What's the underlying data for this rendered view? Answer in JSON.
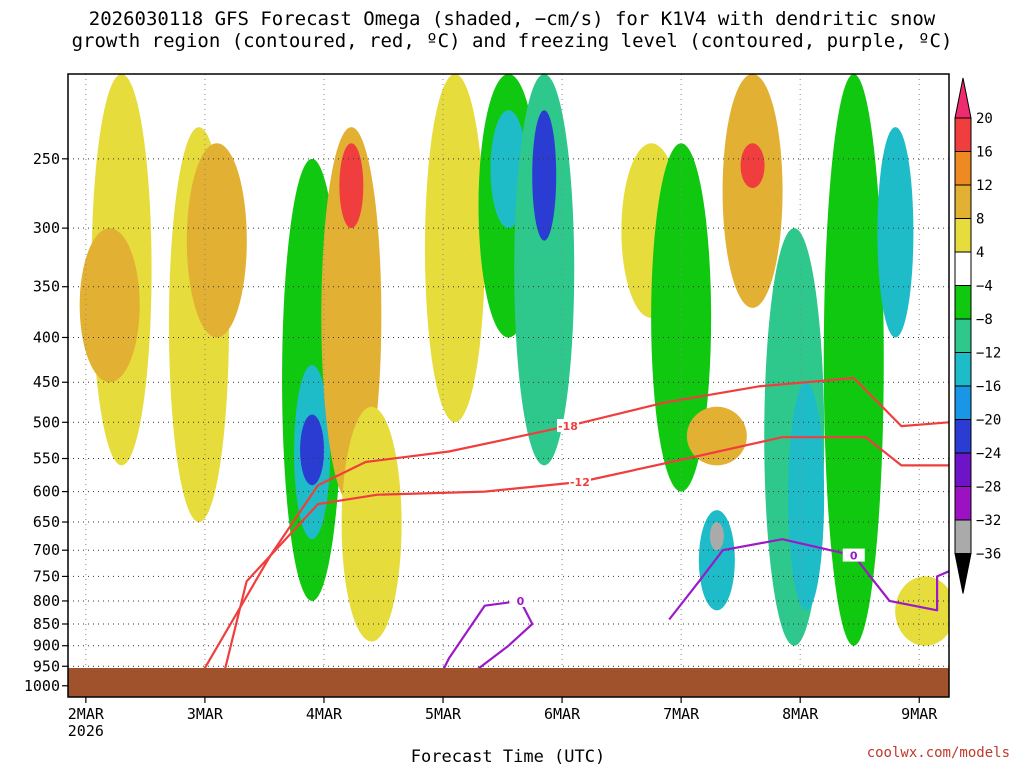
{
  "chart_data": {
    "type": "heatmap",
    "title_line1": "2026030118 GFS Forecast Omega (shaded, −cm/s) for K1V4 with dendritic snow",
    "title_line2": "growth region (contoured, red, ºC) and freezing level (contoured, purple, ºC)",
    "xlabel": "Forecast Time (UTC)",
    "credit": "coolwx.com/models",
    "x_range_days": [
      0.0,
      7.4
    ],
    "x_ticks": [
      {
        "day": 0.15,
        "label": "2MAR",
        "sub": "2026"
      },
      {
        "day": 1.15,
        "label": "3MAR",
        "sub": ""
      },
      {
        "day": 2.15,
        "label": "4MAR",
        "sub": ""
      },
      {
        "day": 3.15,
        "label": "5MAR",
        "sub": ""
      },
      {
        "day": 4.15,
        "label": "6MAR",
        "sub": ""
      },
      {
        "day": 5.15,
        "label": "7MAR",
        "sub": ""
      },
      {
        "day": 6.15,
        "label": "8MAR",
        "sub": ""
      },
      {
        "day": 7.15,
        "label": "9MAR",
        "sub": ""
      }
    ],
    "y_ticks": [
      250,
      300,
      350,
      400,
      450,
      500,
      550,
      600,
      650,
      700,
      750,
      800,
      850,
      900,
      950,
      1000
    ],
    "y_range_hpa": [
      200,
      1030
    ],
    "colorbar": {
      "labels": [
        "20",
        "16",
        "12",
        "8",
        "4",
        "−4",
        "−8",
        "−12",
        "−16",
        "−20",
        "−24",
        "−28",
        "−32",
        "−36"
      ],
      "colors": [
        "#f02a6e",
        "#f03e3e",
        "#ee8a22",
        "#e2b032",
        "#e6dc3c",
        "#ffffff",
        "#10c810",
        "#2ec88c",
        "#1ebcc8",
        "#1a96e6",
        "#2a3cd2",
        "#6e14c8",
        "#9c12c2",
        "#aaaaaa",
        "#000000"
      ]
    },
    "omega_blobs": [
      {
        "day": 0.45,
        "p0": 200,
        "p1": 560,
        "val": 5
      },
      {
        "day": 1.1,
        "p0": 230,
        "p1": 650,
        "val": 5
      },
      {
        "day": 0.35,
        "p0": 300,
        "p1": 450,
        "val": 9
      },
      {
        "day": 1.25,
        "p0": 240,
        "p1": 400,
        "val": 9
      },
      {
        "day": 2.05,
        "p0": 250,
        "p1": 800,
        "val": -7
      },
      {
        "day": 2.05,
        "p0": 430,
        "p1": 680,
        "val": -13
      },
      {
        "day": 2.05,
        "p0": 490,
        "p1": 590,
        "val": -22
      },
      {
        "day": 2.38,
        "p0": 230,
        "p1": 620,
        "val": 9
      },
      {
        "day": 2.38,
        "p0": 240,
        "p1": 300,
        "val": 17
      },
      {
        "day": 2.55,
        "p0": 480,
        "p1": 890,
        "val": 5
      },
      {
        "day": 3.25,
        "p0": 200,
        "p1": 500,
        "val": 5
      },
      {
        "day": 3.7,
        "p0": 200,
        "p1": 400,
        "val": -7
      },
      {
        "day": 3.7,
        "p0": 220,
        "p1": 300,
        "val": -15
      },
      {
        "day": 4.0,
        "p0": 200,
        "p1": 560,
        "val": -8
      },
      {
        "day": 4.0,
        "p0": 220,
        "p1": 310,
        "val": -21
      },
      {
        "day": 4.9,
        "p0": 240,
        "p1": 380,
        "val": 5
      },
      {
        "day": 5.15,
        "p0": 240,
        "p1": 600,
        "val": -7
      },
      {
        "day": 5.45,
        "p0": 480,
        "p1": 560,
        "val": 9
      },
      {
        "day": 5.45,
        "p0": 630,
        "p1": 820,
        "val": -14
      },
      {
        "day": 5.45,
        "p0": 650,
        "p1": 700,
        "val": -33
      },
      {
        "day": 5.75,
        "p0": 200,
        "p1": 370,
        "val": 9
      },
      {
        "day": 5.75,
        "p0": 240,
        "p1": 270,
        "val": 17
      },
      {
        "day": 6.1,
        "p0": 300,
        "p1": 900,
        "val": -8
      },
      {
        "day": 6.2,
        "p0": 450,
        "p1": 820,
        "val": -13
      },
      {
        "day": 6.6,
        "p0": 200,
        "p1": 900,
        "val": -7
      },
      {
        "day": 6.95,
        "p0": 230,
        "p1": 400,
        "val": -13
      },
      {
        "day": 7.2,
        "p0": 750,
        "p1": 900,
        "val": 5
      }
    ],
    "red_contours": [
      {
        "label": "-18",
        "points": [
          [
            1.1,
            980
          ],
          [
            1.7,
            710
          ],
          [
            2.1,
            590
          ],
          [
            2.5,
            555
          ],
          [
            3.2,
            540
          ],
          [
            4.2,
            505
          ],
          [
            5.0,
            475
          ],
          [
            5.8,
            455
          ],
          [
            6.6,
            445
          ],
          [
            7.0,
            505
          ],
          [
            7.4,
            500
          ]
        ]
      },
      {
        "label": "-12",
        "points": [
          [
            1.3,
            980
          ],
          [
            1.5,
            760
          ],
          [
            2.1,
            620
          ],
          [
            2.6,
            605
          ],
          [
            3.5,
            600
          ],
          [
            4.3,
            585
          ],
          [
            5.2,
            550
          ],
          [
            6.0,
            520
          ],
          [
            6.7,
            520
          ],
          [
            7.0,
            560
          ],
          [
            7.4,
            560
          ]
        ]
      }
    ],
    "purple_contours": [
      {
        "label": "0",
        "points": [
          [
            3.1,
            990
          ],
          [
            3.2,
            930
          ],
          [
            3.5,
            810
          ],
          [
            3.8,
            800
          ],
          [
            3.9,
            850
          ],
          [
            3.7,
            900
          ],
          [
            3.3,
            990
          ]
        ]
      },
      {
        "label": "0",
        "points": [
          [
            5.05,
            840
          ],
          [
            5.3,
            760
          ],
          [
            5.5,
            700
          ],
          [
            6.0,
            680
          ],
          [
            6.6,
            710
          ],
          [
            6.9,
            800
          ],
          [
            7.3,
            820
          ],
          [
            7.3,
            750
          ],
          [
            7.4,
            740
          ]
        ]
      }
    ]
  }
}
